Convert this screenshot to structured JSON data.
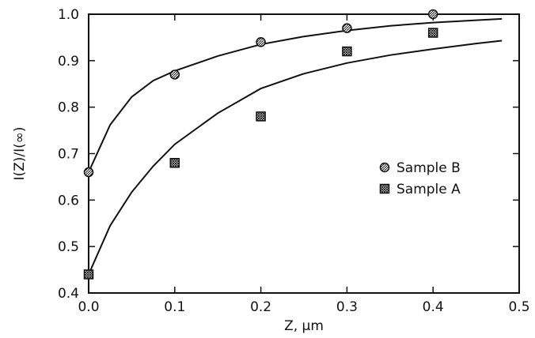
{
  "chart_data": {
    "type": "scatter",
    "title": "",
    "xlabel": "Z, μm",
    "ylabel": "I(Z)/I(∞)",
    "xlim": [
      0.0,
      0.5
    ],
    "ylim": [
      0.4,
      1.0
    ],
    "x_ticks": [
      "0.0",
      "0.1",
      "0.2",
      "0.3",
      "0.4",
      "0.5"
    ],
    "y_ticks": [
      "0.4",
      "0.5",
      "0.6",
      "0.7",
      "0.8",
      "0.9",
      "1.0"
    ],
    "grid": false,
    "legend_position": "right",
    "series": [
      {
        "name": "Sample B",
        "marker": "circle-hatched",
        "x": [
          0.0,
          0.1,
          0.2,
          0.3,
          0.4
        ],
        "y": [
          0.66,
          0.87,
          0.94,
          0.97,
          1.0
        ]
      },
      {
        "name": "Sample A",
        "marker": "square-hatched",
        "x": [
          0.0,
          0.1,
          0.2,
          0.3,
          0.4
        ],
        "y": [
          0.44,
          0.68,
          0.78,
          0.92,
          0.96
        ]
      }
    ],
    "fit_curves": [
      {
        "label": "Sample B fit",
        "x": [
          0.0,
          0.025,
          0.05,
          0.075,
          0.1,
          0.15,
          0.2,
          0.25,
          0.3,
          0.35,
          0.4,
          0.45,
          0.48
        ],
        "y": [
          0.66,
          0.762,
          0.822,
          0.857,
          0.878,
          0.91,
          0.935,
          0.952,
          0.965,
          0.975,
          0.982,
          0.987,
          0.99
        ]
      },
      {
        "label": "Sample A fit",
        "x": [
          0.0,
          0.025,
          0.05,
          0.075,
          0.1,
          0.15,
          0.2,
          0.25,
          0.3,
          0.35,
          0.4,
          0.45,
          0.48
        ],
        "y": [
          0.44,
          0.545,
          0.617,
          0.673,
          0.72,
          0.787,
          0.84,
          0.872,
          0.895,
          0.912,
          0.925,
          0.937,
          0.943
        ]
      }
    ]
  }
}
